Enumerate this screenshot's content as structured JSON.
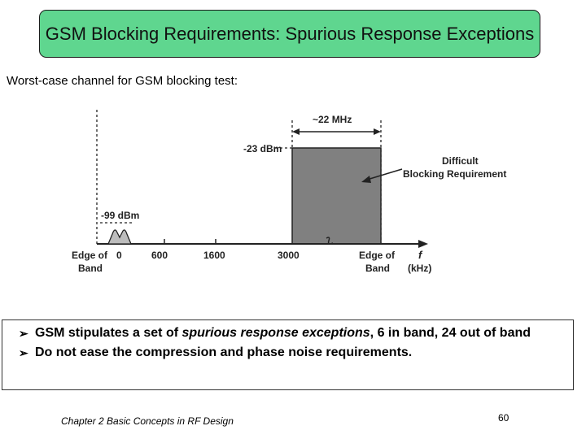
{
  "title": "GSM Blocking Requirements: Spurious Response Exceptions",
  "subtitle": "Worst-case channel for GSM blocking test:",
  "diagram": {
    "bandwidth_label": "~22 MHz",
    "blocker_level": "-23 dBm",
    "signal_level": "-99 dBm",
    "callout_line1": "Difficult",
    "callout_line2": "Blocking Requirement",
    "axis_symbol": "f",
    "axis_unit": "(kHz)",
    "edge_left_line1": "Edge of",
    "edge_left_line2": "Band",
    "edge_right_line1": "Edge of",
    "edge_right_line2": "Band",
    "ticks": [
      "0",
      "600",
      "1600",
      "3000"
    ],
    "blocker_fill": "#808080"
  },
  "bullets": [
    {
      "pre": "GSM stipulates a set of ",
      "em": "spurious response exceptions",
      "post": ", 6 in band, 24 out of band"
    },
    {
      "pre": "Do not ease the compression and phase noise requirements.",
      "em": "",
      "post": ""
    }
  ],
  "footer": "Chapter 2 Basic Concepts in RF Design",
  "page_number": "60",
  "colors": {
    "title_bg": "#5fd68f"
  }
}
